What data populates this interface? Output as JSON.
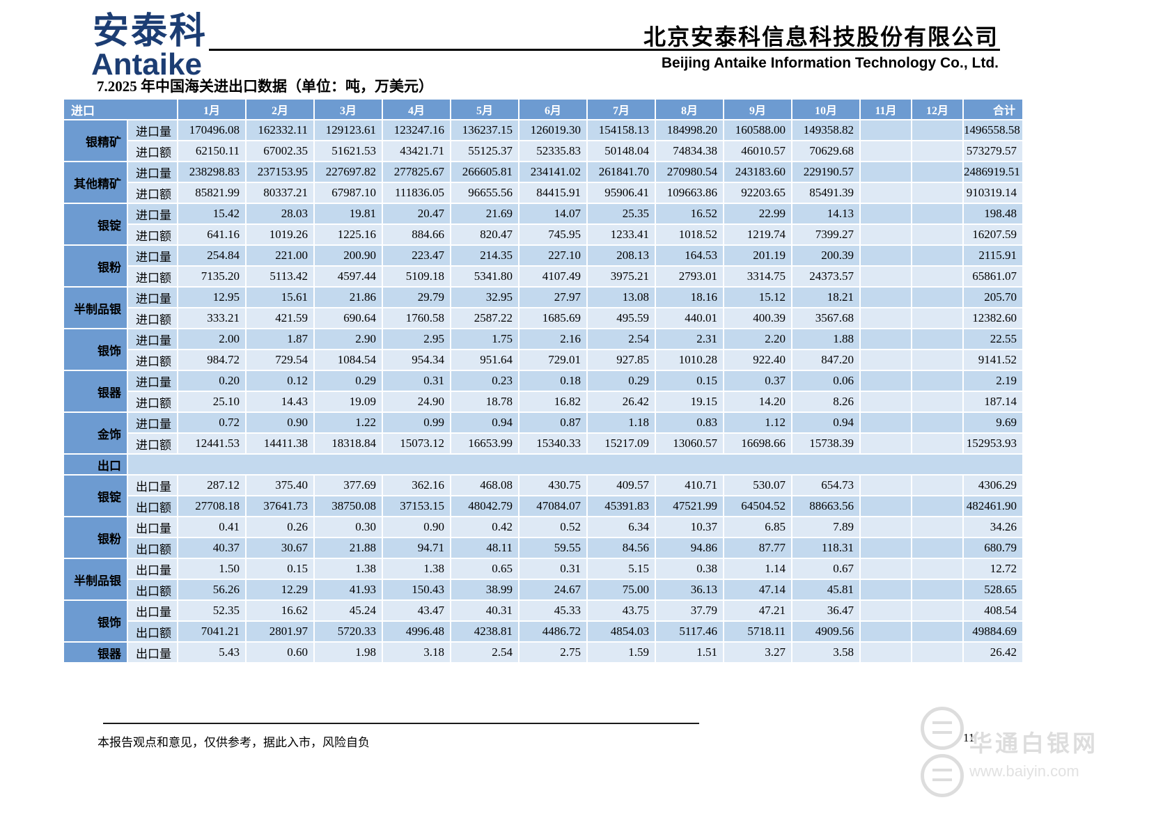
{
  "header": {
    "logo_cn": "安泰科",
    "logo_en": "Antaike",
    "company_cn": "北京安泰科信息科技股份有限公司",
    "company_en": "Beijing Antaike Information Technology Co., Ltd."
  },
  "title": "7.2025 年中国海关进出口数据（单位：吨，万美元）",
  "colors": {
    "header_blue": "#6d9bd1",
    "row_dark": "#c3d9ee",
    "row_light": "#dee9f5",
    "logo_navy": "#1c3d73"
  },
  "table": {
    "month_headers": [
      "1月",
      "2月",
      "3月",
      "4月",
      "5月",
      "6月",
      "7月",
      "8月",
      "9月",
      "10月",
      "11月",
      "12月"
    ],
    "total_header": "合计",
    "import_section": {
      "label": "进口",
      "products": [
        {
          "name": "银精矿",
          "rows": [
            {
              "metric": "进口量",
              "values": [
                "170496.08",
                "162332.11",
                "129123.61",
                "123247.16",
                "136237.15",
                "126019.30",
                "154158.13",
                "184998.20",
                "160588.00",
                "149358.82",
                "",
                ""
              ],
              "total": "1496558.58"
            },
            {
              "metric": "进口额",
              "values": [
                "62150.11",
                "67002.35",
                "51621.53",
                "43421.71",
                "55125.37",
                "52335.83",
                "50148.04",
                "74834.38",
                "46010.57",
                "70629.68",
                "",
                ""
              ],
              "total": "573279.57"
            }
          ]
        },
        {
          "name": "其他精矿",
          "rows": [
            {
              "metric": "进口量",
              "values": [
                "238298.83",
                "237153.95",
                "227697.82",
                "277825.67",
                "266605.81",
                "234141.02",
                "261841.70",
                "270980.54",
                "243183.60",
                "229190.57",
                "",
                ""
              ],
              "total": "2486919.51"
            },
            {
              "metric": "进口额",
              "values": [
                "85821.99",
                "80337.21",
                "67987.10",
                "111836.05",
                "96655.56",
                "84415.91",
                "95906.41",
                "109663.86",
                "92203.65",
                "85491.39",
                "",
                ""
              ],
              "total": "910319.14"
            }
          ]
        },
        {
          "name": "银锭",
          "rows": [
            {
              "metric": "进口量",
              "values": [
                "15.42",
                "28.03",
                "19.81",
                "20.47",
                "21.69",
                "14.07",
                "25.35",
                "16.52",
                "22.99",
                "14.13",
                "",
                ""
              ],
              "total": "198.48"
            },
            {
              "metric": "进口额",
              "values": [
                "641.16",
                "1019.26",
                "1225.16",
                "884.66",
                "820.47",
                "745.95",
                "1233.41",
                "1018.52",
                "1219.74",
                "7399.27",
                "",
                ""
              ],
              "total": "16207.59"
            }
          ]
        },
        {
          "name": "银粉",
          "rows": [
            {
              "metric": "进口量",
              "values": [
                "254.84",
                "221.00",
                "200.90",
                "223.47",
                "214.35",
                "227.10",
                "208.13",
                "164.53",
                "201.19",
                "200.39",
                "",
                ""
              ],
              "total": "2115.91"
            },
            {
              "metric": "进口额",
              "values": [
                "7135.20",
                "5113.42",
                "4597.44",
                "5109.18",
                "5341.80",
                "4107.49",
                "3975.21",
                "2793.01",
                "3314.75",
                "24373.57",
                "",
                ""
              ],
              "total": "65861.07"
            }
          ]
        },
        {
          "name": "半制品银",
          "rows": [
            {
              "metric": "进口量",
              "values": [
                "12.95",
                "15.61",
                "21.86",
                "29.79",
                "32.95",
                "27.97",
                "13.08",
                "18.16",
                "15.12",
                "18.21",
                "",
                ""
              ],
              "total": "205.70"
            },
            {
              "metric": "进口额",
              "values": [
                "333.21",
                "421.59",
                "690.64",
                "1760.58",
                "2587.22",
                "1685.69",
                "495.59",
                "440.01",
                "400.39",
                "3567.68",
                "",
                ""
              ],
              "total": "12382.60"
            }
          ]
        },
        {
          "name": "银饰",
          "rows": [
            {
              "metric": "进口量",
              "values": [
                "2.00",
                "1.87",
                "2.90",
                "2.95",
                "1.75",
                "2.16",
                "2.54",
                "2.31",
                "2.20",
                "1.88",
                "",
                ""
              ],
              "total": "22.55"
            },
            {
              "metric": "进口额",
              "values": [
                "984.72",
                "729.54",
                "1084.54",
                "954.34",
                "951.64",
                "729.01",
                "927.85",
                "1010.28",
                "922.40",
                "847.20",
                "",
                ""
              ],
              "total": "9141.52"
            }
          ]
        },
        {
          "name": "银器",
          "rows": [
            {
              "metric": "进口量",
              "values": [
                "0.20",
                "0.12",
                "0.29",
                "0.31",
                "0.23",
                "0.18",
                "0.29",
                "0.15",
                "0.37",
                "0.06",
                "",
                ""
              ],
              "total": "2.19"
            },
            {
              "metric": "进口额",
              "values": [
                "25.10",
                "14.43",
                "19.09",
                "24.90",
                "18.78",
                "16.82",
                "26.42",
                "19.15",
                "14.20",
                "8.26",
                "",
                ""
              ],
              "total": "187.14"
            }
          ]
        },
        {
          "name": "金饰",
          "rows": [
            {
              "metric": "进口量",
              "values": [
                "0.72",
                "0.90",
                "1.22",
                "0.99",
                "0.94",
                "0.87",
                "1.18",
                "0.83",
                "1.12",
                "0.94",
                "",
                ""
              ],
              "total": "9.69"
            },
            {
              "metric": "进口额",
              "values": [
                "12441.53",
                "14411.38",
                "18318.84",
                "15073.12",
                "16653.99",
                "15340.33",
                "15217.09",
                "13060.57",
                "16698.66",
                "15738.39",
                "",
                ""
              ],
              "total": "152953.93"
            }
          ]
        }
      ]
    },
    "export_section": {
      "label": "出口",
      "products": [
        {
          "name": "银锭",
          "rows": [
            {
              "metric": "出口量",
              "values": [
                "287.12",
                "375.40",
                "377.69",
                "362.16",
                "468.08",
                "430.75",
                "409.57",
                "410.71",
                "530.07",
                "654.73",
                "",
                ""
              ],
              "total": "4306.29"
            },
            {
              "metric": "出口额",
              "values": [
                "27708.18",
                "37641.73",
                "38750.08",
                "37153.15",
                "48042.79",
                "47084.07",
                "45391.83",
                "47521.99",
                "64504.52",
                "88663.56",
                "",
                ""
              ],
              "total": "482461.90"
            }
          ]
        },
        {
          "name": "银粉",
          "rows": [
            {
              "metric": "出口量",
              "values": [
                "0.41",
                "0.26",
                "0.30",
                "0.90",
                "0.42",
                "0.52",
                "6.34",
                "10.37",
                "6.85",
                "7.89",
                "",
                ""
              ],
              "total": "34.26"
            },
            {
              "metric": "出口额",
              "values": [
                "40.37",
                "30.67",
                "21.88",
                "94.71",
                "48.11",
                "59.55",
                "84.56",
                "94.86",
                "87.77",
                "118.31",
                "",
                ""
              ],
              "total": "680.79"
            }
          ]
        },
        {
          "name": "半制品银",
          "rows": [
            {
              "metric": "出口量",
              "values": [
                "1.50",
                "0.15",
                "1.38",
                "1.38",
                "0.65",
                "0.31",
                "5.15",
                "0.38",
                "1.14",
                "0.67",
                "",
                ""
              ],
              "total": "12.72"
            },
            {
              "metric": "出口额",
              "values": [
                "56.26",
                "12.29",
                "41.93",
                "150.43",
                "38.99",
                "24.67",
                "75.00",
                "36.13",
                "47.14",
                "45.81",
                "",
                ""
              ],
              "total": "528.65"
            }
          ]
        },
        {
          "name": "银饰",
          "rows": [
            {
              "metric": "出口量",
              "values": [
                "52.35",
                "16.62",
                "45.24",
                "43.47",
                "40.31",
                "45.33",
                "43.75",
                "37.79",
                "47.21",
                "36.47",
                "",
                ""
              ],
              "total": "408.54"
            },
            {
              "metric": "出口额",
              "values": [
                "7041.21",
                "2801.97",
                "5720.33",
                "4996.48",
                "4238.81",
                "4486.72",
                "4854.03",
                "5117.46",
                "5718.11",
                "4909.56",
                "",
                ""
              ],
              "total": "49884.69"
            }
          ]
        },
        {
          "name": "银器",
          "rows": [
            {
              "metric": "出口量",
              "values": [
                "5.43",
                "0.60",
                "1.98",
                "3.18",
                "2.54",
                "2.75",
                "1.59",
                "1.51",
                "3.27",
                "3.58",
                "",
                ""
              ],
              "total": "26.42"
            }
          ]
        }
      ]
    }
  },
  "footer": {
    "disclaimer": "本报告观点和意见，仅供参考，据此入市，风险自负",
    "page_number": "11"
  },
  "watermark": {
    "site_name": "华通白银网",
    "site_url": "www.baiyin.com"
  }
}
